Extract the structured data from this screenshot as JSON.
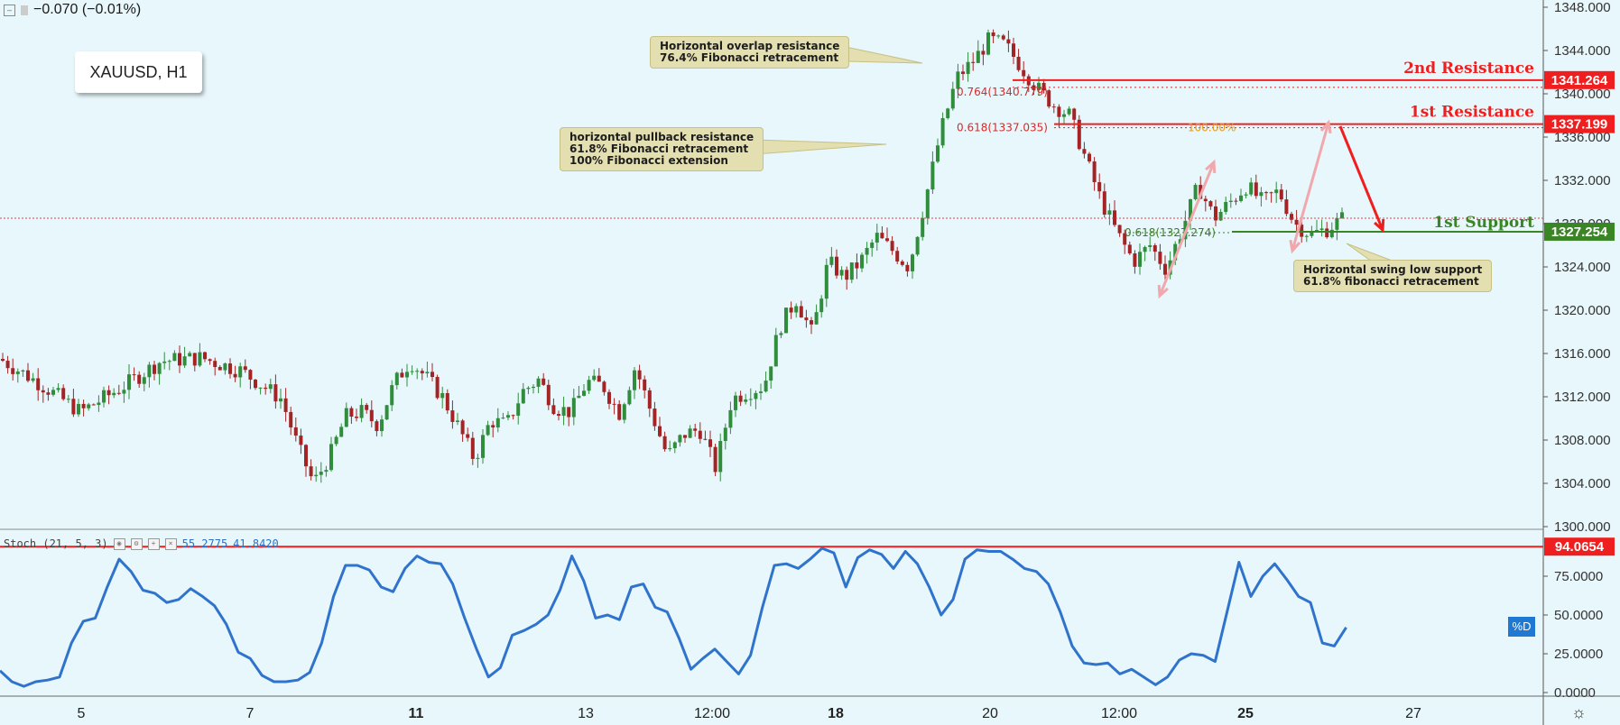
{
  "header": {
    "change": "−0.070 (−0.01%)"
  },
  "chart_title": "XAUUSD, H1",
  "callouts": {
    "overlap": "Horizontal overlap resistance\n76.4% Fibonacci retracement",
    "pullback": "horizontal pullback resistance\n61.8% Fibonacci retracement\n100% Fibonacci extension",
    "swing": "Horizontal swing low support\n61.8% fibonacci retracement"
  },
  "levels": {
    "r2_label": "2nd Resistance",
    "r2_price": "1341.264",
    "r1_label": "1st Resistance",
    "r1_price": "1337.199",
    "s1_label": "1st Support",
    "s1_price": "1327.254",
    "fib1": "0.764(1340.779)",
    "fib2": "0.618(1337.035)",
    "fib3": "0.618(1327.274)",
    "ext": "100.00%"
  },
  "stoch": {
    "name": "Stoch (21, 5, 3)",
    "value_k": "55.2775",
    "value_d": "41.8420",
    "level_label": "94.0654",
    "legend": "%D"
  },
  "colors": {
    "up": "#2f8d3c",
    "down": "#a42425",
    "resistance": "#ef1f1f",
    "support": "#3a8526",
    "stoch_line": "#2f73cc",
    "arrow_pink": "#f0a8ad"
  },
  "chart_data": [
    {
      "type": "candlestick",
      "title": "XAUUSD, H1",
      "ylim": [
        1300,
        1348
      ],
      "y_ticks": [
        "1300.000",
        "1304.000",
        "1308.000",
        "1312.000",
        "1316.000",
        "1320.000",
        "1324.000",
        "1328.000",
        "1332.000",
        "1336.000",
        "1340.000",
        "1344.000",
        "1348.000"
      ],
      "x_ticks": [
        "5",
        "7",
        "11",
        "13",
        "12:00",
        "18",
        "20",
        "12:00",
        "25",
        "27"
      ],
      "bold_x_ticks": [
        "11",
        "18",
        "25"
      ],
      "price_path": [
        [
          0,
          1315.5
        ],
        [
          10,
          1313.2
        ],
        [
          20,
          1310.6
        ],
        [
          30,
          1312.8
        ],
        [
          40,
          1315.3
        ],
        [
          50,
          1315.6
        ],
        [
          60,
          1314.4
        ],
        [
          70,
          1311.8
        ],
        [
          74,
          1307.5
        ],
        [
          78,
          1304.0
        ],
        [
          82,
          1306.5
        ],
        [
          86,
          1310.2
        ],
        [
          90,
          1310.6
        ],
        [
          94,
          1309.4
        ],
        [
          98,
          1313.2
        ],
        [
          102,
          1315.3
        ],
        [
          106,
          1313.8
        ],
        [
          110,
          1312.0
        ],
        [
          114,
          1309.2
        ],
        [
          118,
          1306.2
        ],
        [
          122,
          1309.8
        ],
        [
          126,
          1309.4
        ],
        [
          130,
          1312.5
        ],
        [
          134,
          1313.6
        ],
        [
          138,
          1311.0
        ],
        [
          142,
          1310.6
        ],
        [
          146,
          1313.4
        ],
        [
          150,
          1313.0
        ],
        [
          154,
          1310.5
        ],
        [
          158,
          1314.8
        ],
        [
          162,
          1310.5
        ],
        [
          166,
          1306.5
        ],
        [
          170,
          1308.5
        ],
        [
          174,
          1309.0
        ],
        [
          178,
          1305.4
        ],
        [
          182,
          1311.8
        ],
        [
          186,
          1312.5
        ],
        [
          190,
          1313.0
        ],
        [
          194,
          1318.5
        ],
        [
          198,
          1321.0
        ],
        [
          202,
          1317.8
        ],
        [
          206,
          1324.5
        ],
        [
          210,
          1323.0
        ],
        [
          214,
          1324.5
        ],
        [
          218,
          1326.8
        ],
        [
          222,
          1325.5
        ],
        [
          226,
          1324.0
        ],
        [
          230,
          1330.0
        ],
        [
          234,
          1336.5
        ],
        [
          238,
          1341.5
        ],
        [
          242,
          1343.0
        ],
        [
          246,
          1345.0
        ],
        [
          250,
          1344.5
        ],
        [
          254,
          1342.5
        ],
        [
          258,
          1340.5
        ],
        [
          262,
          1339.0
        ],
        [
          266,
          1338.0
        ],
        [
          270,
          1334.0
        ],
        [
          274,
          1330.0
        ],
        [
          278,
          1327.0
        ],
        [
          282,
          1324.5
        ],
        [
          286,
          1326.0
        ],
        [
          290,
          1323.8
        ],
        [
          294,
          1327.5
        ],
        [
          298,
          1331.5
        ],
        [
          302,
          1328.5
        ],
        [
          306,
          1330.0
        ],
        [
          310,
          1331.5
        ],
        [
          314,
          1330.0
        ],
        [
          318,
          1331.0
        ],
        [
          322,
          1328.0
        ],
        [
          326,
          1327.0
        ],
        [
          330,
          1327.5
        ],
        [
          334,
          1328.5
        ]
      ],
      "levels": [
        {
          "name": "2nd Resistance",
          "value": 1341.264
        },
        {
          "name": "1st Resistance",
          "value": 1337.199
        },
        {
          "name": "1st Support",
          "value": 1327.254
        },
        {
          "name": "last price",
          "value": 1328.5
        }
      ],
      "fib_levels": [
        {
          "label": "0.764",
          "value": 1340.779
        },
        {
          "label": "0.618",
          "value": 1337.035
        },
        {
          "label": "0.618",
          "value": 1327.274
        }
      ]
    },
    {
      "type": "line",
      "title": "Stoch (21, 5, 3)",
      "ylim": [
        0,
        100
      ],
      "y_ticks": [
        "0.0000",
        "25.0000",
        "50.0000",
        "75.0000"
      ],
      "level": 94.0654,
      "series": [
        {
          "name": "%D",
          "points": [
            [
              0,
              14
            ],
            [
              4,
              7
            ],
            [
              8,
              4
            ],
            [
              12,
              7
            ],
            [
              16,
              8
            ],
            [
              20,
              10
            ],
            [
              24,
              32
            ],
            [
              28,
              46
            ],
            [
              32,
              48
            ],
            [
              36,
              68
            ],
            [
              40,
              86
            ],
            [
              44,
              78
            ],
            [
              48,
              66
            ],
            [
              52,
              64
            ],
            [
              56,
              58
            ],
            [
              60,
              60
            ],
            [
              64,
              67
            ],
            [
              68,
              62
            ],
            [
              72,
              56
            ],
            [
              76,
              44
            ],
            [
              80,
              26
            ],
            [
              84,
              22
            ],
            [
              88,
              11
            ],
            [
              92,
              7
            ],
            [
              96,
              7
            ],
            [
              100,
              8
            ],
            [
              104,
              13
            ],
            [
              108,
              32
            ],
            [
              112,
              62
            ],
            [
              116,
              82
            ],
            [
              120,
              82
            ],
            [
              124,
              79
            ],
            [
              128,
              68
            ],
            [
              132,
              65
            ],
            [
              136,
              80
            ],
            [
              140,
              88
            ],
            [
              144,
              84
            ],
            [
              148,
              83
            ],
            [
              152,
              70
            ],
            [
              156,
              48
            ],
            [
              160,
              28
            ],
            [
              164,
              10
            ],
            [
              168,
              16
            ],
            [
              172,
              37
            ],
            [
              176,
              40
            ],
            [
              180,
              44
            ],
            [
              184,
              50
            ],
            [
              188,
              66
            ],
            [
              192,
              88
            ],
            [
              196,
              72
            ],
            [
              200,
              48
            ],
            [
              204,
              50
            ],
            [
              208,
              47
            ],
            [
              212,
              68
            ],
            [
              216,
              70
            ],
            [
              220,
              55
            ],
            [
              224,
              52
            ],
            [
              228,
              35
            ],
            [
              232,
              15
            ],
            [
              236,
              22
            ],
            [
              240,
              28
            ],
            [
              244,
              20
            ],
            [
              248,
              12
            ],
            [
              252,
              24
            ],
            [
              256,
              55
            ],
            [
              260,
              82
            ],
            [
              264,
              83
            ],
            [
              268,
              80
            ],
            [
              272,
              86
            ],
            [
              276,
              93
            ],
            [
              280,
              90
            ],
            [
              284,
              68
            ],
            [
              288,
              87
            ],
            [
              292,
              92
            ],
            [
              296,
              89
            ],
            [
              300,
              80
            ],
            [
              304,
              91
            ],
            [
              308,
              83
            ],
            [
              312,
              68
            ],
            [
              316,
              50
            ],
            [
              320,
              60
            ],
            [
              324,
              86
            ],
            [
              328,
              92
            ],
            [
              332,
              91
            ],
            [
              336,
              91
            ],
            [
              340,
              86
            ],
            [
              344,
              80
            ],
            [
              348,
              78
            ],
            [
              352,
              70
            ],
            [
              356,
              52
            ],
            [
              360,
              30
            ],
            [
              364,
              19
            ],
            [
              368,
              18
            ],
            [
              372,
              19
            ],
            [
              376,
              12
            ],
            [
              380,
              15
            ],
            [
              384,
              10
            ],
            [
              388,
              5
            ],
            [
              392,
              10
            ],
            [
              396,
              21
            ],
            [
              400,
              25
            ],
            [
              404,
              24
            ],
            [
              408,
              20
            ],
            [
              412,
              52
            ],
            [
              416,
              84
            ],
            [
              420,
              62
            ],
            [
              424,
              75
            ],
            [
              428,
              83
            ],
            [
              432,
              73
            ],
            [
              436,
              62
            ],
            [
              440,
              58
            ],
            [
              444,
              32
            ],
            [
              448,
              30
            ],
            [
              452,
              42
            ]
          ]
        }
      ]
    }
  ]
}
